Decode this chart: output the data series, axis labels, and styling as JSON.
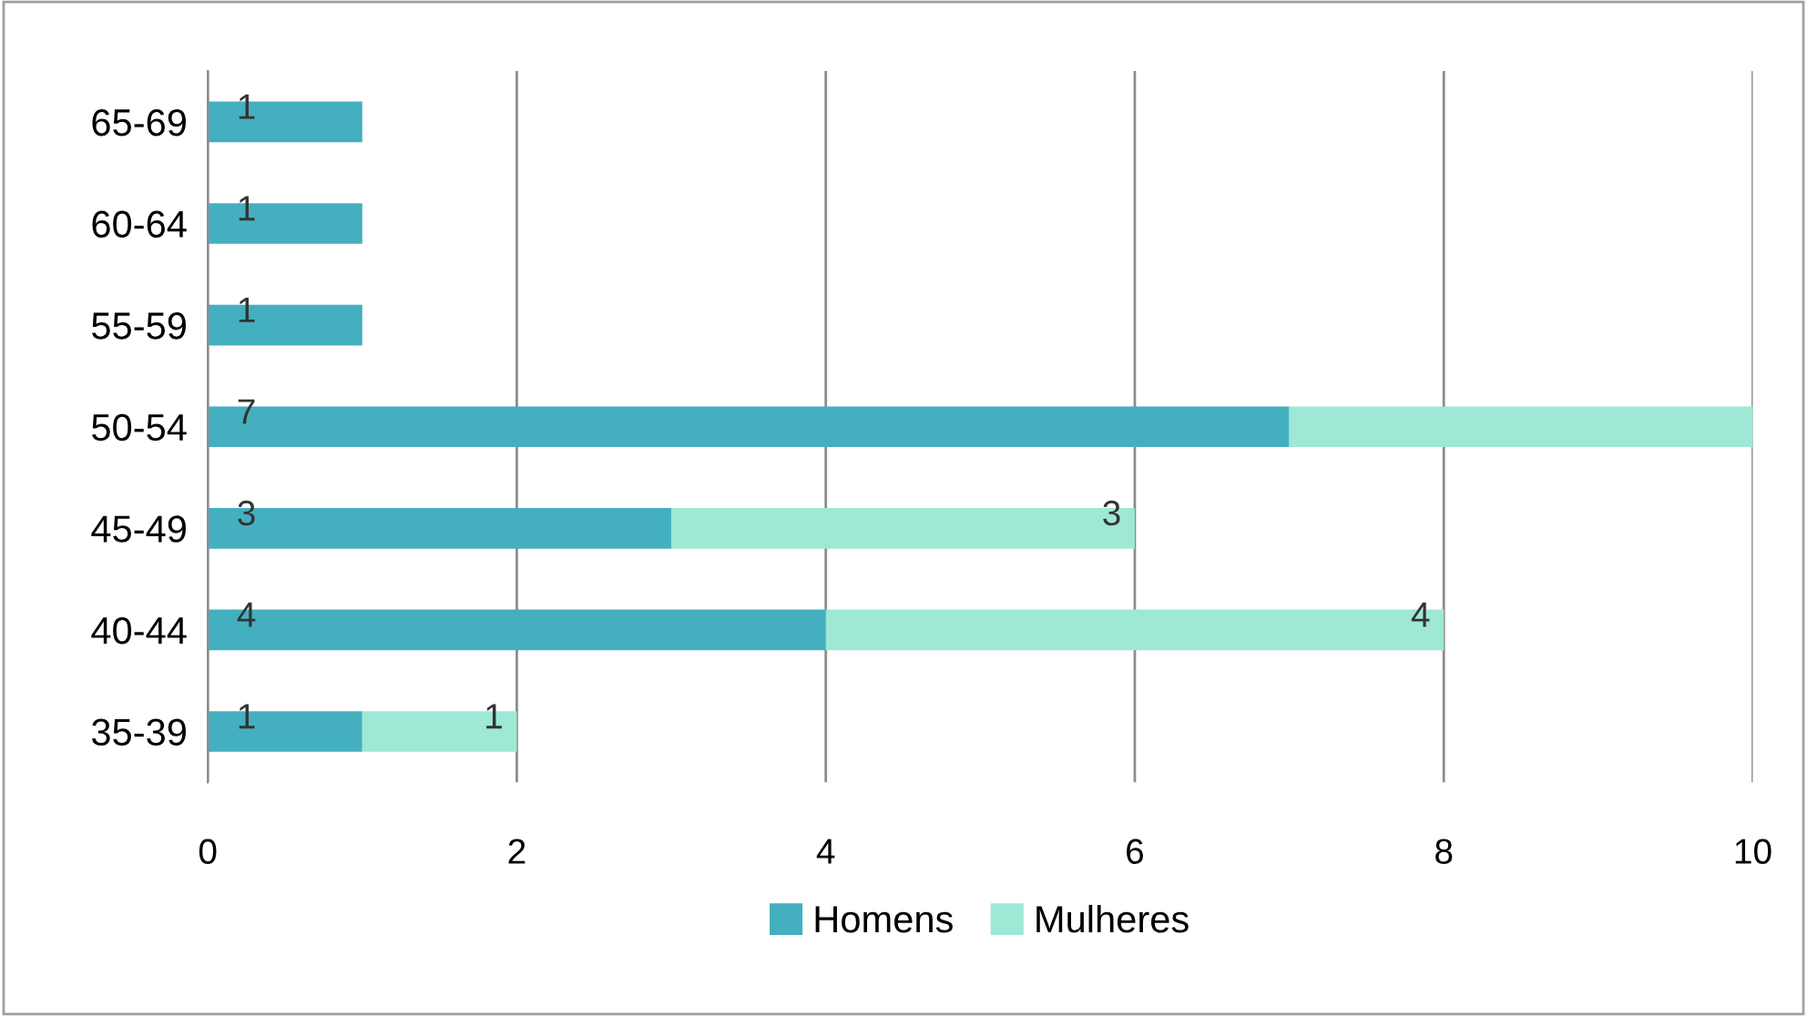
{
  "chart_data": {
    "type": "bar",
    "orientation": "horizontal",
    "stacked": true,
    "categories": [
      "65-69",
      "60-64",
      "55-59",
      "50-54",
      "45-49",
      "40-44",
      "35-39"
    ],
    "series": [
      {
        "name": "Homens",
        "color": "#44b0bf",
        "values": [
          1,
          1,
          1,
          7,
          3,
          4,
          1
        ],
        "value_labels": [
          "1",
          "1",
          "1",
          "7",
          "3",
          "4",
          "1"
        ]
      },
      {
        "name": "Mulheres",
        "color": "#9ee8d5",
        "values": [
          null,
          null,
          null,
          3,
          3,
          4,
          1
        ],
        "value_labels": [
          null,
          null,
          null,
          null,
          "3",
          "4",
          "1"
        ]
      }
    ],
    "xlim": [
      0,
      10
    ],
    "xticks": [
      0,
      2,
      4,
      6,
      8,
      10
    ],
    "grid": "x",
    "legend": "bottom"
  }
}
